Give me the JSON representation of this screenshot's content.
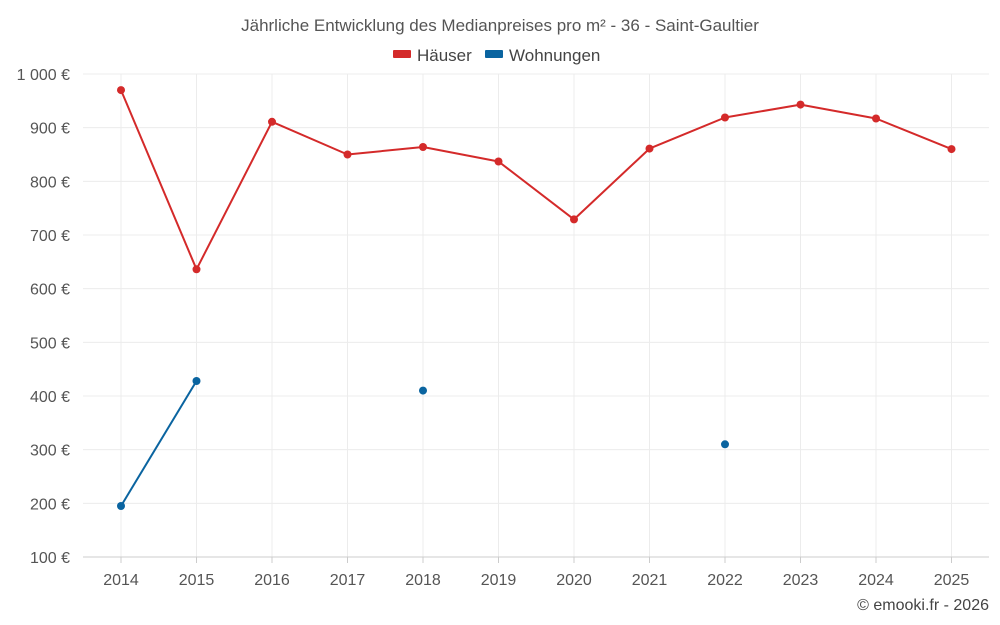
{
  "chart_data": {
    "type": "line",
    "title": "Jährliche Entwicklung des Medianpreises pro m² - 36 - Saint-Gaultier",
    "categories": [
      "2014",
      "2015",
      "2016",
      "2017",
      "2018",
      "2019",
      "2020",
      "2021",
      "2022",
      "2023",
      "2024",
      "2025"
    ],
    "series": [
      {
        "name": "Häuser",
        "color": "#d42a2a",
        "values": [
          970,
          636,
          911,
          850,
          864,
          837,
          729,
          861,
          919,
          943,
          917,
          860
        ]
      },
      {
        "name": "Wohnungen",
        "color": "#0a64a0",
        "values": [
          195,
          428,
          null,
          null,
          410,
          null,
          null,
          null,
          310,
          null,
          null,
          null
        ]
      }
    ],
    "ylim": [
      100,
      1000
    ],
    "yticks": [
      100,
      200,
      300,
      400,
      500,
      600,
      700,
      800,
      900,
      1000
    ],
    "ytick_labels": [
      "100 €",
      "200 €",
      "300 €",
      "400 €",
      "500 €",
      "600 €",
      "700 €",
      "800 €",
      "900 €",
      "1 000 €"
    ],
    "xlabel": "",
    "ylabel": "",
    "grid": true,
    "legend_position": "top-center"
  },
  "credit": "© emooki.fr - 2026"
}
